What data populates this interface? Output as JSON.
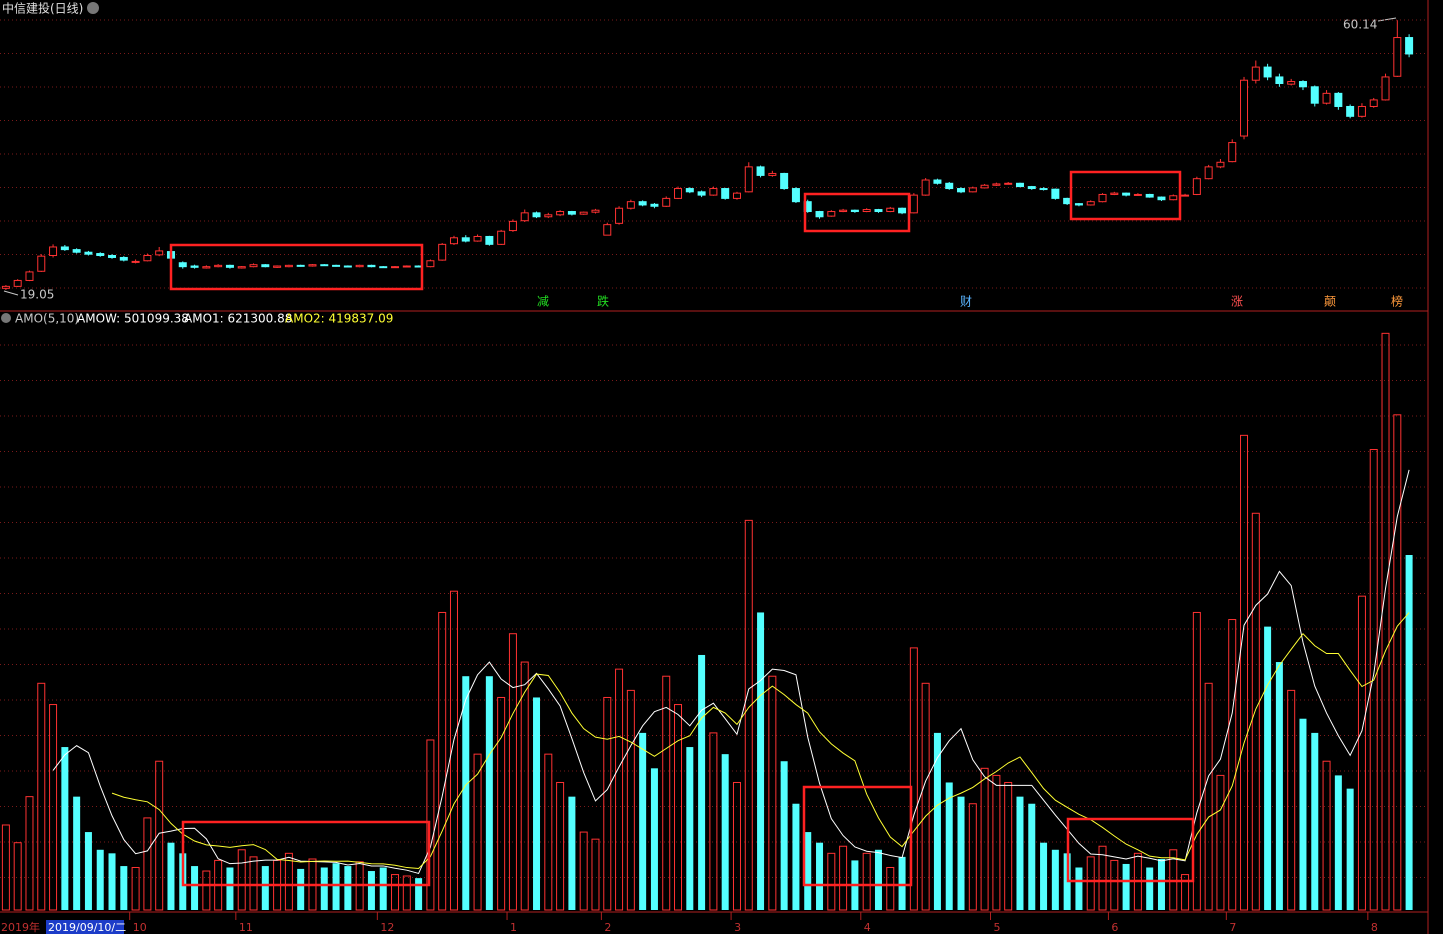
{
  "chart_data": [
    {
      "type": "candlestick",
      "title": "中信建投(日线)",
      "ylim": [
        16,
        62
      ],
      "up_color": "#ff3232",
      "down_color": "#54ffff",
      "annotations": [
        "60.14",
        "19.05"
      ],
      "event_markers": [
        {
          "text": "减",
          "color": "#22dd22"
        },
        {
          "text": "跌",
          "color": "#22dd22"
        },
        {
          "text": "财",
          "color": "#5ab4ff"
        },
        {
          "text": "涨",
          "color": "#ff5050"
        },
        {
          "text": "颠",
          "color": "#ff9a3c"
        },
        {
          "text": "榜",
          "color": "#ff9a3c"
        }
      ],
      "ohlc": [
        [
          19.3,
          19.8,
          19.05,
          19.6
        ],
        [
          19.6,
          20.7,
          19.5,
          20.5
        ],
        [
          20.5,
          22.0,
          20.4,
          21.8
        ],
        [
          21.9,
          24.5,
          21.8,
          24.2
        ],
        [
          24.3,
          26.0,
          24.0,
          25.6
        ],
        [
          25.6,
          25.9,
          25.0,
          25.2
        ],
        [
          25.2,
          25.4,
          24.6,
          24.8
        ],
        [
          24.8,
          25.0,
          24.3,
          24.5
        ],
        [
          24.6,
          24.8,
          24.1,
          24.3
        ],
        [
          24.3,
          24.5,
          23.8,
          24.0
        ],
        [
          24.0,
          24.2,
          23.4,
          23.6
        ],
        [
          23.3,
          23.7,
          23.1,
          23.4
        ],
        [
          23.5,
          24.6,
          23.4,
          24.3
        ],
        [
          24.4,
          25.6,
          24.2,
          25.0
        ],
        [
          24.9,
          25.0,
          23.7,
          23.9
        ],
        [
          23.2,
          23.4,
          22.3,
          22.6
        ],
        [
          22.7,
          22.9,
          22.3,
          22.5
        ],
        [
          22.4,
          22.8,
          22.3,
          22.6
        ],
        [
          22.6,
          23.0,
          22.5,
          22.8
        ],
        [
          22.8,
          22.9,
          22.3,
          22.5
        ],
        [
          22.4,
          22.7,
          22.3,
          22.6
        ],
        [
          22.6,
          23.1,
          22.5,
          22.9
        ],
        [
          22.9,
          23.0,
          22.5,
          22.6
        ],
        [
          22.5,
          22.8,
          22.4,
          22.7
        ],
        [
          22.6,
          22.9,
          22.5,
          22.8
        ],
        [
          22.8,
          22.9,
          22.6,
          22.7
        ],
        [
          22.7,
          23.0,
          22.6,
          22.9
        ],
        [
          22.9,
          23.0,
          22.7,
          22.8
        ],
        [
          22.8,
          22.9,
          22.6,
          22.7
        ],
        [
          22.7,
          22.8,
          22.5,
          22.6
        ],
        [
          22.6,
          22.9,
          22.5,
          22.8
        ],
        [
          22.8,
          22.9,
          22.5,
          22.6
        ],
        [
          22.6,
          22.7,
          22.4,
          22.5
        ],
        [
          22.5,
          22.7,
          22.4,
          22.6
        ],
        [
          22.6,
          22.8,
          22.5,
          22.7
        ],
        [
          22.7,
          22.8,
          22.5,
          22.6
        ],
        [
          22.6,
          23.7,
          22.5,
          23.5
        ],
        [
          23.6,
          26.2,
          23.5,
          26.0
        ],
        [
          26.1,
          27.3,
          25.9,
          27.0
        ],
        [
          27.0,
          27.4,
          26.3,
          26.5
        ],
        [
          26.5,
          27.5,
          26.4,
          27.2
        ],
        [
          27.2,
          27.3,
          25.8,
          26.0
        ],
        [
          26.0,
          28.2,
          25.9,
          28.0
        ],
        [
          28.1,
          29.8,
          27.9,
          29.5
        ],
        [
          29.6,
          31.3,
          29.4,
          30.8
        ],
        [
          30.8,
          31.0,
          30.0,
          30.2
        ],
        [
          30.2,
          30.8,
          30.0,
          30.5
        ],
        [
          30.5,
          31.2,
          30.3,
          31.0
        ],
        [
          31.0,
          31.1,
          30.4,
          30.6
        ],
        [
          30.6,
          31.0,
          30.5,
          30.9
        ],
        [
          30.9,
          31.4,
          30.7,
          31.2
        ],
        [
          27.4,
          29.3,
          27.4,
          29.0
        ],
        [
          29.2,
          31.8,
          29.0,
          31.5
        ],
        [
          31.5,
          32.8,
          31.3,
          32.5
        ],
        [
          32.5,
          32.7,
          31.8,
          32.0
        ],
        [
          32.1,
          32.3,
          31.5,
          31.8
        ],
        [
          31.8,
          33.3,
          31.7,
          33.0
        ],
        [
          33.0,
          34.8,
          32.9,
          34.5
        ],
        [
          34.5,
          34.7,
          33.8,
          34.0
        ],
        [
          34.0,
          34.2,
          33.2,
          33.5
        ],
        [
          33.5,
          34.8,
          33.4,
          34.5
        ],
        [
          34.5,
          34.6,
          32.8,
          33.0
        ],
        [
          33.0,
          34.0,
          32.8,
          33.8
        ],
        [
          34.0,
          38.5,
          33.9,
          37.8
        ],
        [
          37.8,
          38.0,
          36.2,
          36.5
        ],
        [
          36.5,
          37.2,
          36.3,
          36.8
        ],
        [
          36.8,
          36.9,
          34.3,
          34.5
        ],
        [
          34.5,
          34.7,
          32.3,
          32.5
        ],
        [
          32.5,
          32.8,
          30.8,
          31.0
        ],
        [
          31.0,
          31.1,
          29.9,
          30.2
        ],
        [
          30.3,
          31.2,
          30.2,
          31.0
        ],
        [
          31.0,
          31.4,
          30.9,
          31.2
        ],
        [
          31.2,
          31.3,
          30.8,
          31.0
        ],
        [
          31.0,
          31.5,
          30.9,
          31.3
        ],
        [
          31.3,
          31.4,
          30.8,
          31.0
        ],
        [
          31.0,
          31.7,
          30.9,
          31.5
        ],
        [
          31.5,
          31.6,
          30.6,
          30.8
        ],
        [
          30.8,
          33.8,
          30.7,
          33.5
        ],
        [
          33.5,
          36.1,
          33.4,
          35.8
        ],
        [
          35.8,
          36.0,
          35.1,
          35.3
        ],
        [
          35.3,
          35.5,
          34.3,
          34.5
        ],
        [
          34.5,
          34.7,
          33.8,
          34.0
        ],
        [
          34.0,
          34.8,
          33.9,
          34.6
        ],
        [
          34.6,
          35.2,
          34.5,
          35.0
        ],
        [
          35.0,
          35.4,
          34.9,
          35.2
        ],
        [
          35.2,
          35.5,
          35.1,
          35.3
        ],
        [
          35.3,
          35.4,
          34.7,
          34.8
        ],
        [
          34.8,
          34.9,
          34.3,
          34.5
        ],
        [
          34.5,
          34.7,
          34.2,
          34.4
        ],
        [
          34.4,
          34.5,
          32.8,
          33.0
        ],
        [
          33.0,
          33.1,
          32.0,
          32.2
        ],
        [
          32.2,
          32.3,
          31.8,
          32.0
        ],
        [
          32.0,
          32.7,
          31.9,
          32.5
        ],
        [
          32.5,
          33.8,
          32.4,
          33.6
        ],
        [
          33.6,
          34.0,
          33.5,
          33.8
        ],
        [
          33.8,
          33.9,
          33.3,
          33.5
        ],
        [
          33.5,
          33.8,
          33.4,
          33.6
        ],
        [
          33.6,
          33.7,
          33.1,
          33.2
        ],
        [
          33.2,
          33.3,
          32.6,
          32.8
        ],
        [
          32.8,
          33.6,
          32.7,
          33.4
        ],
        [
          33.4,
          33.7,
          33.3,
          33.5
        ],
        [
          33.6,
          36.3,
          33.5,
          36.0
        ],
        [
          36.0,
          38.1,
          35.9,
          37.8
        ],
        [
          37.8,
          39.0,
          37.6,
          38.5
        ],
        [
          38.6,
          42.0,
          38.5,
          41.5
        ],
        [
          42.5,
          51.5,
          42.0,
          51.0
        ],
        [
          51.0,
          54.0,
          50.5,
          53.0
        ],
        [
          53.0,
          53.5,
          51.0,
          51.5
        ],
        [
          51.5,
          52.0,
          50.0,
          50.5
        ],
        [
          50.4,
          51.2,
          50.2,
          50.8
        ],
        [
          50.8,
          51.0,
          49.5,
          50.0
        ],
        [
          50.0,
          50.2,
          47.0,
          47.5
        ],
        [
          47.5,
          49.5,
          47.3,
          49.0
        ],
        [
          49.0,
          49.2,
          46.5,
          47.0
        ],
        [
          47.0,
          47.3,
          45.2,
          45.5
        ],
        [
          45.5,
          47.5,
          45.3,
          47.0
        ],
        [
          47.0,
          48.3,
          46.8,
          48.0
        ],
        [
          48.0,
          52.0,
          47.9,
          51.5
        ],
        [
          51.6,
          60.14,
          51.5,
          57.5
        ],
        [
          57.5,
          58.0,
          54.5,
          55.0
        ]
      ]
    },
    {
      "type": "bar",
      "ylim": [
        0,
        830000
      ],
      "indicator": [
        "AMO(5,10)",
        "AMOW: 501099.38",
        "AMO1: 621300.88",
        "AMO2: 419837.09"
      ],
      "x_start_label": "2019年",
      "cursor_label": "2019/09/10/二",
      "categories": [
        null,
        null,
        null,
        null,
        null,
        null,
        null,
        null,
        null,
        null,
        null,
        "10",
        null,
        null,
        null,
        null,
        null,
        null,
        null,
        null,
        "11",
        null,
        null,
        null,
        null,
        null,
        null,
        null,
        null,
        null,
        null,
        null,
        "12",
        null,
        null,
        null,
        null,
        null,
        null,
        null,
        null,
        null,
        null,
        "1",
        null,
        null,
        null,
        null,
        null,
        null,
        null,
        "2",
        null,
        null,
        null,
        null,
        null,
        null,
        null,
        null,
        null,
        null,
        "3",
        null,
        null,
        null,
        null,
        null,
        null,
        null,
        null,
        null,
        null,
        "4",
        null,
        null,
        null,
        null,
        null,
        null,
        null,
        null,
        null,
        null,
        "5",
        null,
        null,
        null,
        null,
        null,
        null,
        null,
        null,
        null,
        "6",
        null,
        null,
        null,
        null,
        null,
        null,
        null,
        null,
        null,
        "7",
        null,
        null,
        null,
        null,
        null,
        null,
        null,
        null,
        null,
        null,
        null,
        "8",
        null,
        null,
        null
      ],
      "values": [
        120000,
        95000,
        160000,
        320000,
        290000,
        230000,
        160000,
        110000,
        85000,
        80000,
        62000,
        60000,
        130000,
        210000,
        95000,
        80000,
        62000,
        55000,
        70000,
        60000,
        85000,
        75000,
        62000,
        70000,
        80000,
        58000,
        72000,
        60000,
        66000,
        62000,
        68000,
        55000,
        60000,
        50000,
        48000,
        45000,
        240000,
        420000,
        450000,
        330000,
        220000,
        330000,
        300000,
        390000,
        350000,
        300000,
        220000,
        180000,
        160000,
        110000,
        100000,
        300000,
        340000,
        310000,
        250000,
        200000,
        330000,
        290000,
        230000,
        360000,
        250000,
        220000,
        180000,
        550000,
        420000,
        330000,
        210000,
        150000,
        110000,
        95000,
        80000,
        90000,
        70000,
        80000,
        85000,
        60000,
        75000,
        370000,
        320000,
        250000,
        180000,
        160000,
        150000,
        200000,
        190000,
        180000,
        160000,
        150000,
        95000,
        85000,
        80000,
        60000,
        75000,
        90000,
        70000,
        65000,
        80000,
        60000,
        72000,
        85000,
        50000,
        420000,
        320000,
        190000,
        410000,
        670000,
        560000,
        400000,
        350000,
        310000,
        270000,
        250000,
        210000,
        190000,
        171300,
        443000,
        650000,
        814000,
        699000,
        501099.38
      ],
      "series": [
        {
          "name": "AMO1",
          "color": "#ffffff",
          "values": [
            null,
            null,
            null,
            null,
            197000,
            219000,
            232000,
            222000,
            175000,
            133000,
            99400,
            79400,
            83400,
            108400,
            111400,
            115000,
            115400,
            100400,
            72400,
            65400,
            66400,
            69000,
            70400,
            70400,
            74400,
            69000,
            68400,
            68000,
            67200,
            63600,
            65600,
            62200,
            62200,
            59000,
            56200,
            51600,
            88600,
            160600,
            240600,
            297000,
            332000,
            350000,
            326000,
            314000,
            318000,
            334000,
            312000,
            288000,
            242000,
            194000,
            154000,
            170000,
            202000,
            232000,
            260000,
            280000,
            286000,
            276000,
            260000,
            282000,
            292000,
            270000,
            248000,
            312000,
            324000,
            340000,
            338000,
            332000,
            244000,
            179000,
            129000,
            105000,
            89000,
            83000,
            81000,
            77000,
            74000,
            134000,
            182000,
            215000,
            239000,
            256000,
            212000,
            188000,
            176000,
            176000,
            176000,
            176000,
            155000,
            134000,
            114000,
            94000,
            79000,
            78000,
            75000,
            72000,
            76000,
            73000,
            69400,
            72400,
            69400,
            137400,
            189400,
            213000,
            278000,
            402000,
            430000,
            446000,
            478000,
            458000,
            378000,
            316000,
            278000,
            246000,
            218260,
            252860,
            332860,
            453660,
            555460,
            621300.88
          ]
        },
        {
          "name": "AMO2",
          "color": "#ffff33",
          "values": [
            null,
            null,
            null,
            null,
            null,
            null,
            null,
            null,
            null,
            165000,
            159200,
            155700,
            152700,
            141700,
            122200,
            107200,
            97400,
            91900,
            90400,
            88400,
            90700,
            92200,
            85400,
            71400,
            69900,
            67700,
            68700,
            69200,
            68800,
            69000,
            67300,
            65300,
            65100,
            63100,
            59900,
            58600,
            75400,
            111400,
            149800,
            176600,
            191800,
            219300,
            243300,
            277300,
            307500,
            333000,
            331000,
            307000,
            278000,
            256000,
            244000,
            241000,
            245000,
            237000,
            227000,
            217000,
            228000,
            239000,
            246000,
            271000,
            286000,
            278000,
            262000,
            286000,
            303000,
            316000,
            304000,
            290000,
            278000,
            251500,
            234500,
            221500,
            210500,
            163500,
            130000,
            103000,
            89500,
            111500,
            132500,
            148000,
            158000,
            165000,
            173000,
            185000,
            195500,
            207500,
            216000,
            194000,
            171500,
            155000,
            145000,
            135000,
            127500,
            116500,
            104500,
            93000,
            85000,
            76000,
            73700,
            73700,
            70700,
            106700,
            131200,
            141200,
            175200,
            235700,
            283700,
            317700,
            345500,
            368000,
            390000,
            373000,
            362000,
            362000,
            338130,
            315430,
            324430,
            365830,
            400730,
            419837.09
          ]
        }
      ]
    }
  ]
}
